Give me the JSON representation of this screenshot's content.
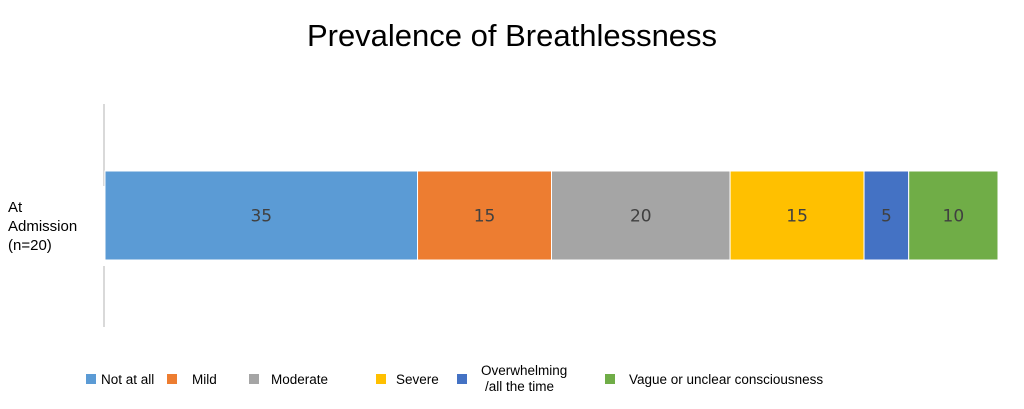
{
  "chart_data": {
    "type": "bar",
    "orientation": "horizontal",
    "stacked": true,
    "title": "Prevalence of Breathlessness",
    "categories": [
      "At Admission (n=20)"
    ],
    "category_label_lines": [
      "At",
      "Admission",
      "(n=20)"
    ],
    "xlim": [
      0,
      100
    ],
    "grid": false,
    "legend_position": "bottom",
    "series": [
      {
        "name": "Not at all",
        "values": [
          35
        ],
        "color": "#5B9BD5",
        "label": "35"
      },
      {
        "name": "Mild",
        "values": [
          15
        ],
        "color": "#ED7D31",
        "label": "15"
      },
      {
        "name": "Moderate",
        "values": [
          20
        ],
        "color": "#A5A5A5",
        "label": "20"
      },
      {
        "name": "Severe",
        "values": [
          15
        ],
        "color": "#FFC000",
        "label": "15"
      },
      {
        "name": "Overwhelming /all the time",
        "name_lines": [
          "Overwhelming",
          "/all the time"
        ],
        "values": [
          5
        ],
        "color": "#4472C4",
        "label": "5"
      },
      {
        "name": "Vague or unclear consciousness",
        "values": [
          10
        ],
        "color": "#70AD47",
        "label": "10"
      }
    ]
  }
}
